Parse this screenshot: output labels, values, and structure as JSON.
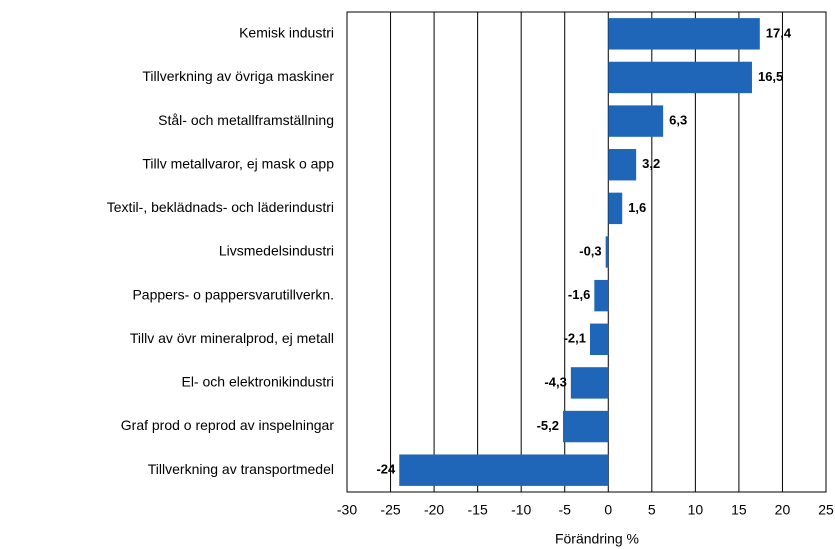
{
  "chart_data": {
    "type": "bar",
    "orientation": "horizontal",
    "xlabel": "Förändring %",
    "categories": [
      "Kemisk industri",
      "Tillverkning av övriga maskiner",
      "Stål- och metallframställning",
      "Tillv metallvaror, ej mask o app",
      "Textil-, beklädnads- och läderindustri",
      "Livsmedelsindustri",
      "Pappers- o pappersvarutillverkn.",
      "Tillv av övr mineralprod, ej metall",
      "El- och elektronikindustri",
      "Graf prod o reprod av inspelningar",
      "Tillverkning av transportmedel"
    ],
    "values": [
      17.4,
      16.5,
      6.3,
      3.2,
      1.6,
      -0.3,
      -1.6,
      -2.1,
      -4.3,
      -5.2,
      -24
    ],
    "value_labels": [
      "17,4",
      "16,5",
      "6,3",
      "3,2",
      "1,6",
      "-0,3",
      "-1,6",
      "-2,1",
      "-4,3",
      "-5,2",
      "-24"
    ],
    "color": "#1f66b8",
    "xlim": [
      -30,
      25
    ],
    "xticks": [
      -30,
      -25,
      -20,
      -15,
      -10,
      -5,
      0,
      5,
      10,
      15,
      20,
      25
    ],
    "grid": true
  }
}
